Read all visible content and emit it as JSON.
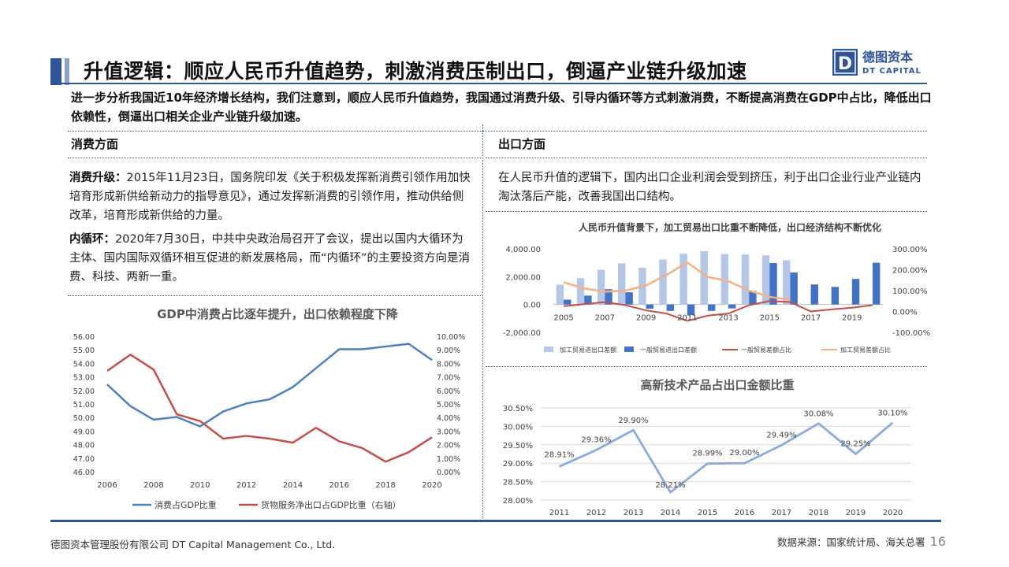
{
  "header": {
    "title": "升值逻辑：顺应人民币升值趋势，刺激消费压制出口，倒逼产业链升级加速",
    "logo_cn": "德图资本",
    "logo_en": "DT CAPITAL",
    "logo_letter": "D"
  },
  "intro": "进一步分析我国近10年经济增长结构，我们注意到，顺应人民币升值趋势，我国通过消费升级、引导内循环等方式刺激消费，不断提高消费在GDP中占比，降低出口依赖性，倒逼出口相关企业产业链升级加速。",
  "left": {
    "heading": "消费方面",
    "p1_label": "消费升级：",
    "p1_text": "2015年11月23日，国务院印发《关于积极发挥新消费引领作用加快培育形成新供给新动力的指导意见》，通过发挥新消费的引领作用，推动供给侧改革，培育形成新供给的力量。",
    "p2_label": "内循环：",
    "p2_text": "2020年7月30日，中共中央政治局召开了会议，提出以国内大循环为主体、国内国际双循环相互促进的新发展格局，而“内循环”的主要投资方向是消费、科技、两新一重。"
  },
  "right": {
    "heading": "出口方面",
    "text": "在人民币升值的逻辑下，国内出口企业利润会受到挤压，利于出口企业行业产业链内淘汰落后产能，改善我国出口结构。"
  },
  "footer": {
    "company": "德图资本管理股份有限公司  DT Capital Management  Co., Ltd.",
    "source": "数据来源：国家统计局、海关总署",
    "page": "16"
  },
  "colors": {
    "primary": "#2f5597",
    "blue": "#4f81bd",
    "red": "#c0504d",
    "lightblue": "#b4c7e7",
    "darkblue": "#4472c4",
    "orange": "#f4b183",
    "line3": "#8eaadb"
  },
  "chart_data": [
    {
      "type": "line",
      "title": "GDP中消费占比逐年提升，出口依赖程度下降",
      "x": [
        2006,
        2007,
        2008,
        2009,
        2010,
        2011,
        2012,
        2013,
        2014,
        2015,
        2016,
        2017,
        2018,
        2019,
        2020
      ],
      "x_ticks": [
        "2006",
        "2008",
        "2010",
        "2012",
        "2014",
        "2016",
        "2018",
        "2020"
      ],
      "y_ticks": [
        "56.00",
        "55.00",
        "54.00",
        "53.00",
        "52.00",
        "51.00",
        "50.00",
        "49.00",
        "48.00",
        "47.00",
        "46.00"
      ],
      "y2_ticks": [
        "10.00%",
        "9.00%",
        "8.00%",
        "7.00%",
        "6.00%",
        "5.00%",
        "4.00%",
        "3.00%",
        "2.00%",
        "1.00%",
        "0.00%"
      ],
      "ylim": [
        46,
        56
      ],
      "y2lim": [
        0,
        10
      ],
      "series": [
        {
          "name": "消费占GDP比重",
          "axis": "left",
          "values": [
            52.5,
            50.9,
            49.9,
            50.1,
            49.4,
            50.5,
            51.1,
            51.4,
            52.3,
            53.7,
            55.1,
            55.1,
            55.3,
            55.5,
            54.3
          ]
        },
        {
          "name": "货物服务净出口占GDP比重（右轴）",
          "axis": "right",
          "values": [
            7.5,
            8.7,
            7.6,
            4.3,
            3.8,
            2.5,
            2.7,
            2.5,
            2.2,
            3.3,
            2.3,
            1.8,
            0.8,
            1.5,
            2.6
          ]
        }
      ],
      "legend": "bottom"
    },
    {
      "type": "bar",
      "title": "人民币升值背景下，加工贸易出口比重不断降低，出口经济结构不断优化",
      "x": [
        2005,
        2006,
        2007,
        2008,
        2009,
        2010,
        2011,
        2012,
        2013,
        2014,
        2015,
        2016,
        2017,
        2018,
        2019,
        2020
      ],
      "x_ticks": [
        "2005",
        "2007",
        "2009",
        "2011",
        "2013",
        "2015",
        "2017",
        "2019"
      ],
      "y_ticks": [
        "4,000.00",
        "2,000.00",
        "0.00",
        "-2,000.00"
      ],
      "y2_ticks": [
        "300.00%",
        "200.00%",
        "100.00%",
        "0.00%",
        "-100.00%"
      ],
      "ylim": [
        -2000,
        4000
      ],
      "y2lim": [
        -100,
        300
      ],
      "series": [
        {
          "name": "加工贸易进出口差额",
          "axis": "left",
          "kind": "bar",
          "values": [
            1420,
            1890,
            2490,
            2960,
            2640,
            3230,
            3650,
            3840,
            3620,
            3590,
            3530,
            3180,
            null,
            null,
            null,
            null
          ]
        },
        {
          "name": "一般贸易进出口差额",
          "axis": "left",
          "kind": "bar",
          "values": [
            350,
            640,
            1100,
            880,
            -300,
            -460,
            -770,
            -460,
            -280,
            960,
            2980,
            2300,
            1440,
            1270,
            1840,
            3000
          ]
        },
        {
          "name": "一般贸易差额占比",
          "axis": "right",
          "kind": "line",
          "values": [
            25,
            35,
            45,
            30,
            5,
            -10,
            -45,
            -20,
            -10,
            30,
            50,
            45,
            0,
            10,
            18,
            30
          ]
        },
        {
          "name": "加工贸易差额占比",
          "axis": "right",
          "kind": "line",
          "values": [
            140,
            110,
            95,
            100,
            125,
            175,
            235,
            165,
            145,
            100,
            70,
            55,
            null,
            null,
            null,
            null
          ]
        }
      ],
      "legend": "bottom"
    },
    {
      "type": "line",
      "title": "高新技术产品占出口金额比重",
      "x": [
        "2011",
        "2012",
        "2013",
        "2014",
        "2015",
        "2016",
        "2017",
        "2018",
        "2019",
        "2020"
      ],
      "y_ticks": [
        "30.50%",
        "30.00%",
        "29.50%",
        "29.00%",
        "28.50%",
        "28.00%"
      ],
      "ylim": [
        28.0,
        30.5
      ],
      "series": [
        {
          "name": "",
          "values": [
            28.91,
            29.36,
            29.9,
            28.21,
            28.99,
            29.0,
            29.49,
            30.08,
            29.25,
            30.1
          ],
          "labels": [
            "28.91%",
            "29.36%",
            "29.90%",
            "28.21%",
            "28.99%",
            "29.00%",
            "29.49%",
            "30.08%",
            "29.25%",
            "30.10%"
          ]
        }
      ],
      "grid": true
    }
  ]
}
